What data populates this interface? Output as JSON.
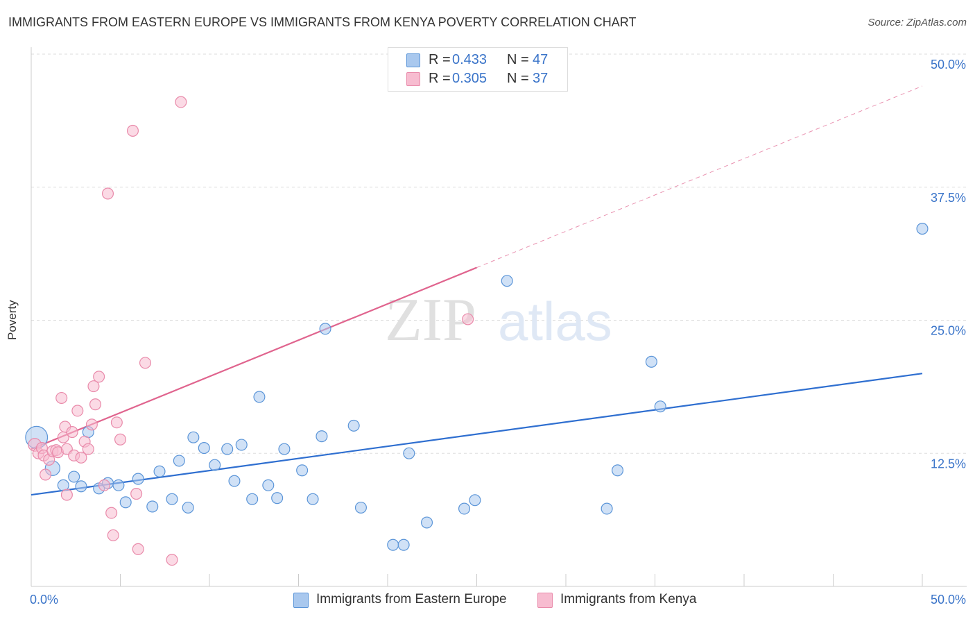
{
  "title": "IMMIGRANTS FROM EASTERN EUROPE VS IMMIGRANTS FROM KENYA POVERTY CORRELATION CHART",
  "source": "Source: ZipAtlas.com",
  "watermark": {
    "zip": "ZIP",
    "atlas": "atlas"
  },
  "legend": {
    "r_label": "R =",
    "n_label": "N =",
    "series": [
      {
        "r": "0.433",
        "n": "47"
      },
      {
        "r": "0.305",
        "n": "37"
      }
    ]
  },
  "colors": {
    "blue_fill": "#a9c8ee",
    "blue_stroke": "#5b95d8",
    "blue_line": "#2f6fd0",
    "pink_fill": "#f7bcd0",
    "pink_stroke": "#e98aaa",
    "pink_line": "#e0648e",
    "tick_text": "#3a74c9",
    "grid": "#dddddd"
  },
  "chart_data": {
    "type": "scatter",
    "title": "IMMIGRANTS FROM EASTERN EUROPE VS IMMIGRANTS FROM KENYA POVERTY CORRELATION CHART",
    "xlabel": "",
    "ylabel": "Poverty",
    "xlim": [
      0,
      50
    ],
    "ylim": [
      0,
      50
    ],
    "x_tick_labels": [
      "0.0%",
      "50.0%"
    ],
    "y_ticks": [
      12.5,
      25.0,
      37.5,
      50.0
    ],
    "y_tick_labels": [
      "12.5%",
      "25.0%",
      "37.5%",
      "50.0%"
    ],
    "grid": true,
    "legend_position": "top-center",
    "series": [
      {
        "name": "Immigrants from Eastern Europe",
        "R": 0.433,
        "N": 47,
        "trend": {
          "x": [
            0,
            50
          ],
          "y": [
            8.6,
            20.0
          ],
          "solid_to": 50
        },
        "points": [
          [
            0.3,
            14.0,
            24
          ],
          [
            1.2,
            11.1,
            16
          ],
          [
            2.4,
            10.3,
            12
          ],
          [
            1.8,
            9.5,
            12
          ],
          [
            2.8,
            9.4,
            12
          ],
          [
            3.2,
            14.5,
            12
          ],
          [
            3.8,
            9.2,
            12
          ],
          [
            4.3,
            9.7,
            12
          ],
          [
            4.9,
            9.5,
            12
          ],
          [
            5.3,
            7.9,
            12
          ],
          [
            6.0,
            10.1,
            12
          ],
          [
            6.8,
            7.5,
            12
          ],
          [
            7.2,
            10.8,
            12
          ],
          [
            7.9,
            8.2,
            12
          ],
          [
            8.3,
            11.8,
            12
          ],
          [
            8.8,
            7.4,
            12
          ],
          [
            9.1,
            14.0,
            12
          ],
          [
            9.7,
            13.0,
            12
          ],
          [
            10.3,
            11.4,
            12
          ],
          [
            11.0,
            12.9,
            12
          ],
          [
            11.4,
            9.9,
            12
          ],
          [
            11.8,
            13.3,
            12
          ],
          [
            12.4,
            8.2,
            12
          ],
          [
            12.8,
            17.8,
            12
          ],
          [
            13.3,
            9.5,
            12
          ],
          [
            13.8,
            8.3,
            12
          ],
          [
            14.2,
            12.9,
            12
          ],
          [
            15.2,
            10.9,
            12
          ],
          [
            15.8,
            8.2,
            12
          ],
          [
            16.3,
            14.1,
            12
          ],
          [
            16.5,
            24.2,
            12
          ],
          [
            18.1,
            15.1,
            12
          ],
          [
            18.5,
            7.4,
            12
          ],
          [
            20.3,
            3.9,
            12
          ],
          [
            20.9,
            3.9,
            12
          ],
          [
            21.2,
            12.5,
            12
          ],
          [
            22.2,
            6.0,
            12
          ],
          [
            24.3,
            7.3,
            12
          ],
          [
            24.9,
            8.1,
            12
          ],
          [
            26.7,
            28.7,
            12
          ],
          [
            32.3,
            7.3,
            12
          ],
          [
            32.9,
            10.9,
            12
          ],
          [
            34.8,
            21.1,
            12
          ],
          [
            35.3,
            16.9,
            12
          ],
          [
            50.0,
            33.6,
            12
          ]
        ]
      },
      {
        "name": "Immigrants from Kenya",
        "R": 0.305,
        "N": 37,
        "trend": {
          "x": [
            0,
            50
          ],
          "y": [
            12.9,
            47.0
          ],
          "solid_to": 25
        },
        "points": [
          [
            0.2,
            13.3,
            14
          ],
          [
            0.4,
            12.5,
            12
          ],
          [
            0.6,
            13.0,
            12
          ],
          [
            0.7,
            12.3,
            12
          ],
          [
            0.8,
            10.5,
            12
          ],
          [
            1.0,
            11.9,
            12
          ],
          [
            1.2,
            12.7,
            12
          ],
          [
            1.4,
            12.8,
            12
          ],
          [
            1.5,
            12.6,
            12
          ],
          [
            1.8,
            14.0,
            12
          ],
          [
            1.9,
            15.0,
            12
          ],
          [
            2.0,
            12.9,
            12
          ],
          [
            2.4,
            12.3,
            12
          ],
          [
            1.7,
            17.7,
            12
          ],
          [
            2.0,
            8.6,
            12
          ],
          [
            2.3,
            14.5,
            12
          ],
          [
            2.6,
            16.5,
            12
          ],
          [
            2.8,
            12.1,
            12
          ],
          [
            3.0,
            13.6,
            12
          ],
          [
            3.2,
            12.9,
            12
          ],
          [
            3.5,
            18.8,
            12
          ],
          [
            3.6,
            17.1,
            12
          ],
          [
            3.4,
            15.2,
            12
          ],
          [
            3.8,
            19.7,
            12
          ],
          [
            4.1,
            9.5,
            12
          ],
          [
            4.3,
            36.9,
            12
          ],
          [
            4.5,
            6.9,
            12
          ],
          [
            4.6,
            4.8,
            12
          ],
          [
            4.8,
            15.4,
            12
          ],
          [
            5.0,
            13.8,
            12
          ],
          [
            5.7,
            42.8,
            12
          ],
          [
            5.9,
            8.7,
            12
          ],
          [
            6.0,
            3.5,
            12
          ],
          [
            6.4,
            21.0,
            12
          ],
          [
            7.9,
            2.5,
            12
          ],
          [
            8.4,
            45.5,
            12
          ],
          [
            24.5,
            25.1,
            12
          ]
        ]
      }
    ]
  }
}
